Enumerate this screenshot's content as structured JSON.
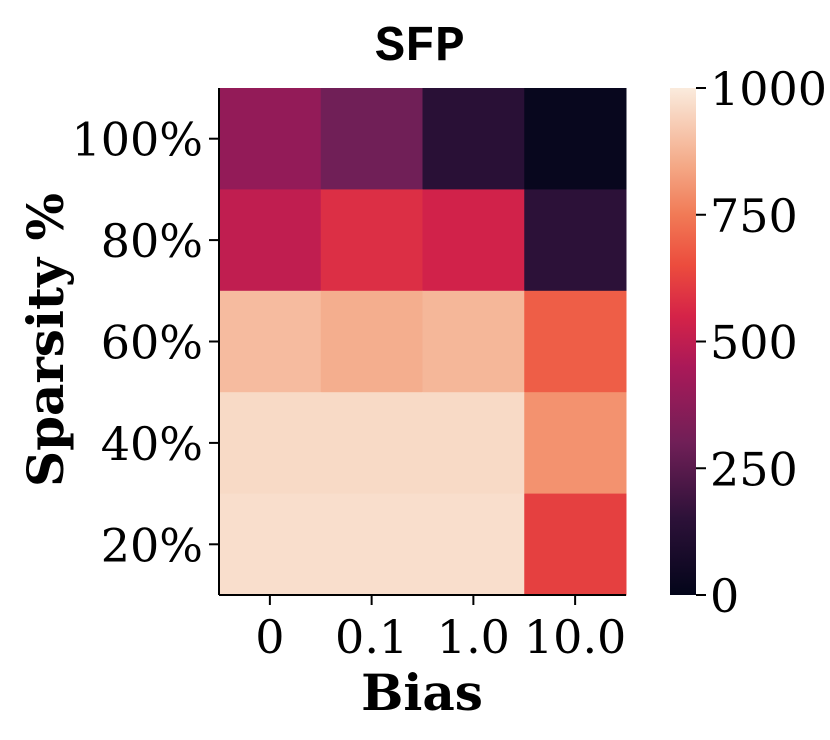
{
  "chart_data": {
    "type": "heatmap",
    "title": "SFP",
    "xlabel": "Bias",
    "ylabel": "Sparsity %",
    "x_categories": [
      "0",
      "0.1",
      "1.0",
      "10.0"
    ],
    "y_categories": [
      "100%",
      "80%",
      "60%",
      "40%",
      "20%"
    ],
    "values": [
      [
        390,
        300,
        140,
        20
      ],
      [
        500,
        580,
        540,
        150
      ],
      [
        890,
        860,
        880,
        690
      ],
      [
        960,
        960,
        960,
        800
      ],
      [
        970,
        970,
        970,
        620
      ]
    ],
    "colorbar": {
      "range": [
        0,
        1000
      ],
      "ticks": [
        "0",
        "250",
        "500",
        "750",
        "1000"
      ],
      "colormap": "rocket"
    }
  }
}
